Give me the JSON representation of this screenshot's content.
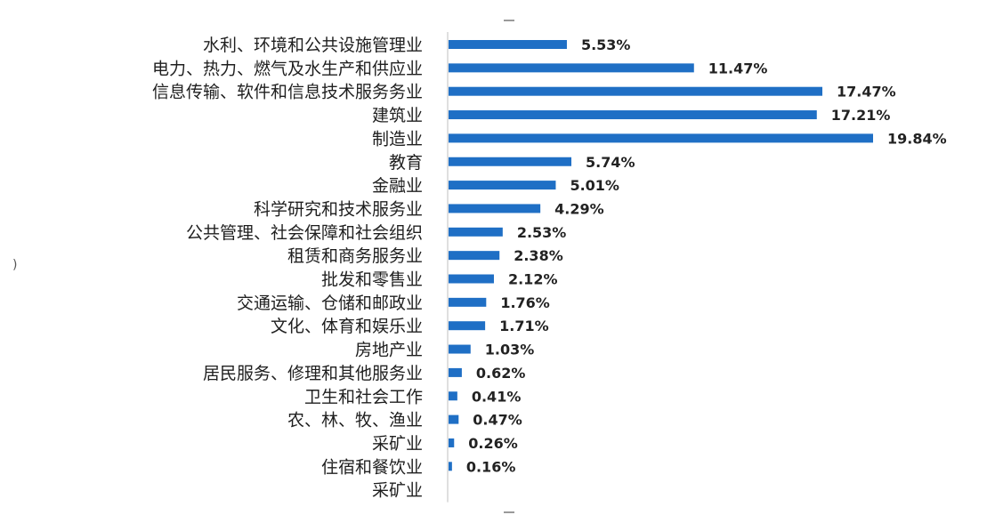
{
  "chart_data": {
    "type": "bar",
    "orientation": "horizontal",
    "categories": [
      "水利、环境和公共设施管理业",
      "电力、热力、燃气及水生产和供应业",
      "信息传输、软件和信息技术服务务业",
      "建筑业",
      "制造业",
      "教育",
      "金融业",
      "科学研究和技术服务业",
      "公共管理、社会保障和社会组织",
      "租赁和商务服务业",
      "批发和零售业",
      "交通运输、仓储和邮政业",
      "文化、体育和娱乐业",
      "房地产业",
      "居民服务、修理和其他服务业",
      "卫生和社会工作",
      "农、林、牧、渔业",
      "采矿业",
      "住宿和餐饮业",
      "采矿业"
    ],
    "values": [
      5.53,
      11.47,
      17.47,
      17.21,
      19.84,
      5.74,
      5.01,
      4.29,
      2.53,
      2.38,
      2.12,
      1.76,
      1.71,
      1.03,
      0.62,
      0.41,
      0.47,
      0.26,
      0.16,
      null
    ],
    "value_labels": [
      "5.53%",
      "11.47%",
      "17.47%",
      "17.21%",
      "19.84%",
      "5.74%",
      "5.01%",
      "4.29%",
      "2.53%",
      "2.38%",
      "2.12%",
      "1.76%",
      "1.71%",
      "1.03%",
      "0.62%",
      "0.41%",
      "0.47%",
      "0.26%",
      "0.16%",
      ""
    ],
    "xlim": [
      0,
      22
    ],
    "unit": "%",
    "bar_color": "#1f6fc5",
    "axis_color": "#bfbfbf",
    "grid": false,
    "legend": "none"
  },
  "edge_glyph": ")"
}
